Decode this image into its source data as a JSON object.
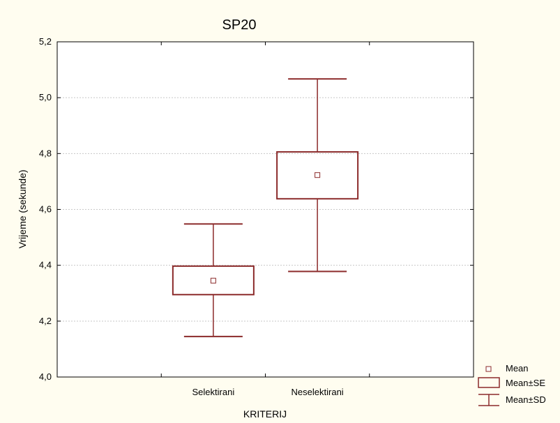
{
  "chart_data": {
    "type": "box",
    "title": "SP20",
    "xlabel": "KRITERIJ",
    "ylabel": "Vrijeme (sekunde)",
    "ylim": [
      4.0,
      5.2
    ],
    "yticks": [
      4.0,
      4.2,
      4.4,
      4.6,
      4.8,
      5.0,
      5.2
    ],
    "ytick_labels": [
      "4,0",
      "4,2",
      "4,4",
      "4,6",
      "4,8",
      "5,0",
      "5,2"
    ],
    "grid": true,
    "categories": [
      "Selektirani",
      "Neselektirani"
    ],
    "groups": [
      {
        "category": "Selektirani",
        "mean": 4.345,
        "se_low": 4.295,
        "se_high": 4.397,
        "sd_low": 4.145,
        "sd_high": 4.548
      },
      {
        "category": "Neselektirani",
        "mean": 4.723,
        "se_low": 4.638,
        "se_high": 4.806,
        "sd_low": 4.378,
        "sd_high": 5.067
      }
    ],
    "legend": {
      "position": "bottom-right",
      "entries": [
        "Mean",
        "Mean±SE",
        "Mean±SD"
      ]
    },
    "color": "#8b2a2a"
  }
}
